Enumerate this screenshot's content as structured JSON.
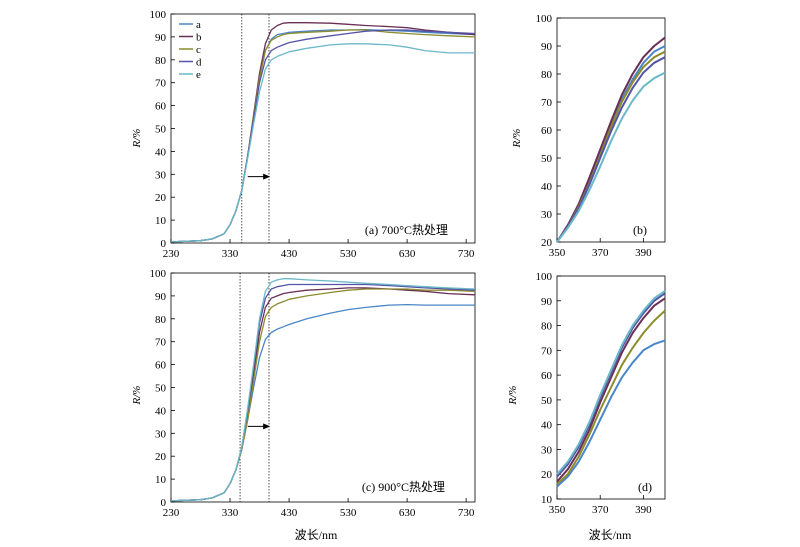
{
  "colors": {
    "a": "#4a86c8",
    "b": "#6a2f55",
    "c": "#8c8c2c",
    "d": "#5454a8",
    "e": "#6bb8c8"
  },
  "legend": [
    "a",
    "b",
    "c",
    "d",
    "e"
  ],
  "shared": {
    "ylabel": "R/%",
    "xlabel": "波长/nm"
  },
  "chart_data": [
    {
      "id": "a",
      "type": "line",
      "annotation": "(a) 700°C热处理",
      "xlim": [
        230,
        745
      ],
      "ylim": [
        0,
        100
      ],
      "xticks": [
        230,
        330,
        430,
        530,
        630,
        730
      ],
      "yticks": [
        0,
        10,
        20,
        30,
        40,
        50,
        60,
        70,
        80,
        90,
        100
      ],
      "vlines": [
        350,
        396
      ],
      "arrow": {
        "x0": 360,
        "x1": 398,
        "y": 29
      },
      "legend_position": "top-left",
      "series": [
        {
          "key": "a",
          "name": "a",
          "x": [
            230,
            280,
            300,
            320,
            330,
            340,
            350,
            360,
            370,
            380,
            390,
            400,
            410,
            420,
            430,
            460,
            500,
            530,
            560,
            600,
            630,
            660,
            700,
            745
          ],
          "y": [
            0.5,
            1,
            1.8,
            4,
            8,
            14,
            23,
            38,
            55,
            72,
            84,
            89,
            91,
            91.5,
            92,
            92.5,
            93,
            93,
            93.2,
            92.8,
            92.5,
            92,
            91.5,
            91
          ]
        },
        {
          "key": "b",
          "name": "b",
          "x": [
            230,
            280,
            300,
            320,
            330,
            340,
            350,
            360,
            370,
            380,
            390,
            400,
            410,
            420,
            430,
            460,
            500,
            530,
            560,
            600,
            630,
            660,
            700,
            745
          ],
          "y": [
            0.5,
            1,
            1.8,
            4,
            8,
            14,
            23,
            38,
            56,
            74,
            87,
            93,
            95,
            96,
            96.2,
            96.2,
            96,
            95.5,
            95,
            94.5,
            94,
            93,
            92,
            91
          ]
        },
        {
          "key": "c",
          "name": "c",
          "x": [
            230,
            280,
            300,
            320,
            330,
            340,
            350,
            360,
            370,
            380,
            390,
            400,
            410,
            420,
            430,
            460,
            500,
            530,
            560,
            600,
            630,
            660,
            700,
            745
          ],
          "y": [
            0.5,
            1,
            1.8,
            4,
            8,
            14,
            23,
            38,
            55,
            72,
            84,
            88.5,
            90,
            91,
            91.5,
            92,
            92.5,
            93,
            93,
            92,
            91.5,
            91,
            90.5,
            90
          ]
        },
        {
          "key": "d",
          "name": "d",
          "x": [
            230,
            280,
            300,
            320,
            330,
            340,
            350,
            360,
            370,
            380,
            390,
            400,
            410,
            420,
            430,
            460,
            500,
            530,
            560,
            600,
            630,
            660,
            700,
            745
          ],
          "y": [
            0.5,
            1,
            1.8,
            4,
            8,
            14,
            23,
            38,
            54,
            70,
            80,
            84,
            85.5,
            86.5,
            87.5,
            89,
            90.5,
            91.5,
            92.5,
            93,
            93,
            92.5,
            92,
            91.5
          ]
        },
        {
          "key": "e",
          "name": "e",
          "x": [
            230,
            280,
            300,
            320,
            330,
            340,
            350,
            360,
            370,
            380,
            390,
            400,
            410,
            420,
            430,
            460,
            500,
            530,
            560,
            600,
            630,
            660,
            700,
            745
          ],
          "y": [
            0.5,
            1,
            1.8,
            4,
            8,
            14,
            23,
            37,
            52,
            66,
            76,
            80,
            81.5,
            82.5,
            83.5,
            85,
            86.5,
            87,
            87,
            86.5,
            85.5,
            84,
            83,
            83
          ]
        }
      ]
    },
    {
      "id": "b",
      "type": "line",
      "annotation": "(b)",
      "xlim": [
        350,
        400
      ],
      "ylim": [
        20,
        100
      ],
      "xticks": [
        350,
        370,
        390
      ],
      "yticks": [
        20,
        30,
        40,
        50,
        60,
        70,
        80,
        90,
        100
      ],
      "series": [
        {
          "key": "a",
          "name": "a",
          "x": [
            350,
            355,
            360,
            365,
            370,
            375,
            380,
            385,
            390,
            395,
            400
          ],
          "y": [
            20,
            26,
            33,
            42,
            52,
            62,
            71,
            78,
            84,
            88,
            90
          ]
        },
        {
          "key": "b",
          "name": "b",
          "x": [
            350,
            355,
            360,
            365,
            370,
            375,
            380,
            385,
            390,
            395,
            400
          ],
          "y": [
            20,
            26,
            33.5,
            43,
            53,
            63,
            72.5,
            80,
            86,
            90,
            93
          ]
        },
        {
          "key": "c",
          "name": "c",
          "x": [
            350,
            355,
            360,
            365,
            370,
            375,
            380,
            385,
            390,
            395,
            400
          ],
          "y": [
            20,
            25.5,
            32.5,
            41,
            51,
            61,
            70,
            77,
            82.5,
            86,
            88
          ]
        },
        {
          "key": "d",
          "name": "d",
          "x": [
            350,
            355,
            360,
            365,
            370,
            375,
            380,
            385,
            390,
            395,
            400
          ],
          "y": [
            20,
            25.5,
            32,
            40.5,
            50,
            59.5,
            68,
            75,
            80.5,
            84,
            86
          ]
        },
        {
          "key": "e",
          "name": "e",
          "x": [
            350,
            355,
            360,
            365,
            370,
            375,
            380,
            385,
            390,
            395,
            400
          ],
          "y": [
            20,
            25,
            31,
            38.5,
            47,
            56,
            64,
            70.5,
            75.5,
            78.5,
            80.5
          ]
        }
      ]
    },
    {
      "id": "c",
      "type": "line",
      "annotation": "(c) 900°C热处理",
      "xlim": [
        230,
        745
      ],
      "ylim": [
        0,
        100
      ],
      "xticks": [
        230,
        330,
        430,
        530,
        630,
        730
      ],
      "yticks": [
        0,
        10,
        20,
        30,
        40,
        50,
        60,
        70,
        80,
        90,
        100
      ],
      "vlines": [
        347,
        396
      ],
      "arrow": {
        "x0": 360,
        "x1": 398,
        "y": 33
      },
      "series": [
        {
          "key": "a",
          "name": "a",
          "x": [
            230,
            280,
            300,
            320,
            330,
            340,
            350,
            360,
            370,
            380,
            390,
            400,
            410,
            420,
            430,
            460,
            500,
            530,
            560,
            600,
            630,
            660,
            700,
            745
          ],
          "y": [
            0.5,
            1,
            1.8,
            4,
            8,
            14,
            23,
            36,
            50,
            63,
            71,
            74,
            75.5,
            76.5,
            77.5,
            80,
            82.5,
            84,
            85,
            86,
            86.2,
            86,
            86,
            86
          ]
        },
        {
          "key": "b",
          "name": "b",
          "x": [
            230,
            280,
            300,
            320,
            330,
            340,
            350,
            360,
            370,
            380,
            390,
            400,
            410,
            420,
            430,
            460,
            500,
            530,
            560,
            600,
            630,
            660,
            700,
            745
          ],
          "y": [
            0.5,
            1,
            1.8,
            4,
            8,
            14,
            23,
            38,
            56,
            74,
            85,
            89,
            90,
            91,
            91.5,
            92.5,
            93,
            93.5,
            93.5,
            93,
            92.5,
            92,
            91,
            90.5
          ]
        },
        {
          "key": "c",
          "name": "c",
          "x": [
            230,
            280,
            300,
            320,
            330,
            340,
            350,
            360,
            370,
            380,
            390,
            400,
            410,
            420,
            430,
            460,
            500,
            530,
            560,
            600,
            630,
            660,
            700,
            745
          ],
          "y": [
            0.5,
            1,
            1.8,
            4,
            8,
            14,
            23,
            36,
            53,
            70,
            81,
            85,
            86.5,
            87.5,
            88.5,
            90,
            91.5,
            92.5,
            93,
            93,
            93,
            92.5,
            92.5,
            92
          ]
        },
        {
          "key": "d",
          "name": "d",
          "x": [
            230,
            280,
            300,
            320,
            330,
            340,
            350,
            360,
            370,
            380,
            390,
            400,
            410,
            420,
            430,
            460,
            500,
            530,
            560,
            600,
            630,
            660,
            700,
            745
          ],
          "y": [
            0.5,
            1,
            1.8,
            4,
            8,
            14,
            24,
            40,
            59,
            78,
            89,
            93,
            94,
            94.5,
            95,
            95,
            95,
            95,
            95,
            94.5,
            94,
            93.5,
            93,
            92.5
          ]
        },
        {
          "key": "e",
          "name": "e",
          "x": [
            230,
            280,
            300,
            320,
            330,
            340,
            350,
            360,
            370,
            380,
            390,
            400,
            410,
            420,
            430,
            460,
            500,
            530,
            560,
            600,
            630,
            660,
            700,
            745
          ],
          "y": [
            0.5,
            1,
            1.8,
            4,
            8,
            14,
            24,
            41,
            60,
            80,
            92,
            96,
            97,
            97.5,
            97.5,
            97,
            96.5,
            96,
            95.5,
            95,
            94.5,
            94,
            93.5,
            93
          ]
        }
      ]
    },
    {
      "id": "d",
      "type": "line",
      "annotation": "(d)",
      "xlim": [
        350,
        400
      ],
      "ylim": [
        10,
        100
      ],
      "xticks": [
        350,
        370,
        390
      ],
      "yticks": [
        10,
        20,
        30,
        40,
        50,
        60,
        70,
        80,
        90,
        100
      ],
      "series": [
        {
          "key": "a",
          "name": "a",
          "x": [
            350,
            355,
            360,
            365,
            370,
            375,
            380,
            385,
            390,
            395,
            400
          ],
          "y": [
            15,
            19,
            25,
            33,
            42,
            51,
            59,
            65,
            70,
            72.5,
            74
          ]
        },
        {
          "key": "b",
          "name": "b",
          "x": [
            350,
            355,
            360,
            365,
            370,
            375,
            380,
            385,
            390,
            395,
            400
          ],
          "y": [
            17,
            22,
            29,
            38,
            49,
            59,
            69,
            77,
            83,
            88,
            91
          ]
        },
        {
          "key": "c",
          "name": "c",
          "x": [
            350,
            355,
            360,
            365,
            370,
            375,
            380,
            385,
            390,
            395,
            400
          ],
          "y": [
            16,
            20,
            27,
            36,
            46,
            55,
            64,
            71,
            77,
            82,
            86
          ]
        },
        {
          "key": "d",
          "name": "d",
          "x": [
            350,
            355,
            360,
            365,
            370,
            375,
            380,
            385,
            390,
            395,
            400
          ],
          "y": [
            19,
            24,
            31,
            40,
            51,
            61,
            71,
            79,
            85,
            90,
            93
          ]
        },
        {
          "key": "e",
          "name": "e",
          "x": [
            350,
            355,
            360,
            365,
            370,
            375,
            380,
            385,
            390,
            395,
            400
          ],
          "y": [
            20,
            25,
            32,
            41,
            52,
            62,
            72,
            80,
            86,
            91,
            94
          ]
        }
      ]
    }
  ]
}
